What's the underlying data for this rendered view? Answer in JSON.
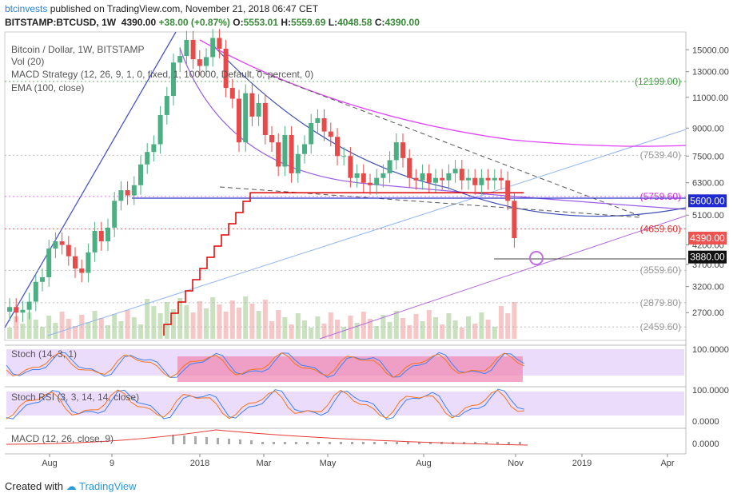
{
  "header": {
    "user": "btcinvests",
    "published": "published on TradingView.com, November 21, 2018 06:47 CET",
    "symbol": "BITSTAMP:BTCUSD, 1W",
    "last": "4390.00",
    "change": "+38.00 (+0.87%)",
    "o_label": "O:",
    "o": "5553.01",
    "h_label": "H:",
    "h": "5559.69",
    "l_label": "L:",
    "l": "4048.58",
    "c_label": "C:",
    "c": "4390.00"
  },
  "legend": {
    "title": "Bitcoin / Dollar, 1W, BITSTAMP",
    "vol": "Vol (20)",
    "macd_strategy": "MACD Strategy (12, 26, 9, 1, 0, fixed, 1, 100000, Default, 0, percent, 0)",
    "ema": "EMA (100, close)",
    "stoch": "Stoch (14, 3, 1)",
    "stoch_rsi": "Stoch RSI (3, 3, 14, 14, close)",
    "macd": "MACD (12, 26, close, 9)"
  },
  "footer": {
    "created": "Created with",
    "brand": "TradingView"
  },
  "colors": {
    "up": "#26a69a",
    "down": "#ef5350",
    "candle_up": "#4caf83",
    "candle_down": "#e84a4a",
    "ema": "#e00000",
    "fan": "#e040fb",
    "trend": "#3f51b5",
    "band": "#d8b4fe",
    "stoch_zone": "#f48fb1"
  },
  "chart_data": {
    "type": "candlestick",
    "title": "Bitcoin / Dollar, 1W, BITSTAMP",
    "yscale": "log",
    "ylim": [
      2300,
      16500
    ],
    "price_ticks": [
      "15000.00",
      "13000.00",
      "11000.00",
      "9000.00",
      "7500.00",
      "6300.00",
      "5100.00",
      "4200.00",
      "3700.00",
      "3200.00",
      "2700.00"
    ],
    "time_labels": [
      "Aug",
      "9",
      "2018",
      "Mar",
      "May",
      "Aug",
      "Nov",
      "2019",
      "Apr"
    ],
    "price_levels": [
      "(12199.00)",
      "(7539.40)",
      "(5759.60)",
      "5600.00",
      "(4659.60)",
      "4390.00",
      "3880.00",
      "(3559.60)",
      "(2879.80)",
      "(2459.60)"
    ],
    "stoch_ticks": [
      "100.0000",
      "0.0000"
    ],
    "stoch_rsi_ticks": [
      "100.0000",
      "0.0000"
    ],
    "macd_ticks": [
      "0.0000"
    ],
    "closes": [
      2800,
      2700,
      2750,
      2900,
      3300,
      3400,
      4100,
      4300,
      4200,
      3900,
      3600,
      3500,
      4000,
      4600,
      4300,
      4700,
      5600,
      6000,
      5800,
      6200,
      7100,
      7700,
      8100,
      9800,
      11100,
      13800,
      14400,
      16000,
      14100,
      13500,
      14300,
      16200,
      15100,
      11700,
      10900,
      8200,
      11300,
      9700,
      10600,
      8600,
      8200,
      7000,
      8600,
      6700,
      7600,
      8100,
      9300,
      9600,
      8800,
      8500,
      7500,
      7500,
      6500,
      6700,
      6300,
      6200,
      6500,
      6700,
      7300,
      8200,
      7400,
      6500,
      6400,
      6700,
      6300,
      6500,
      6400,
      6700,
      6900,
      6400,
      6500,
      6200,
      6500,
      6400,
      6500,
      6400,
      5600,
      4390
    ]
  }
}
